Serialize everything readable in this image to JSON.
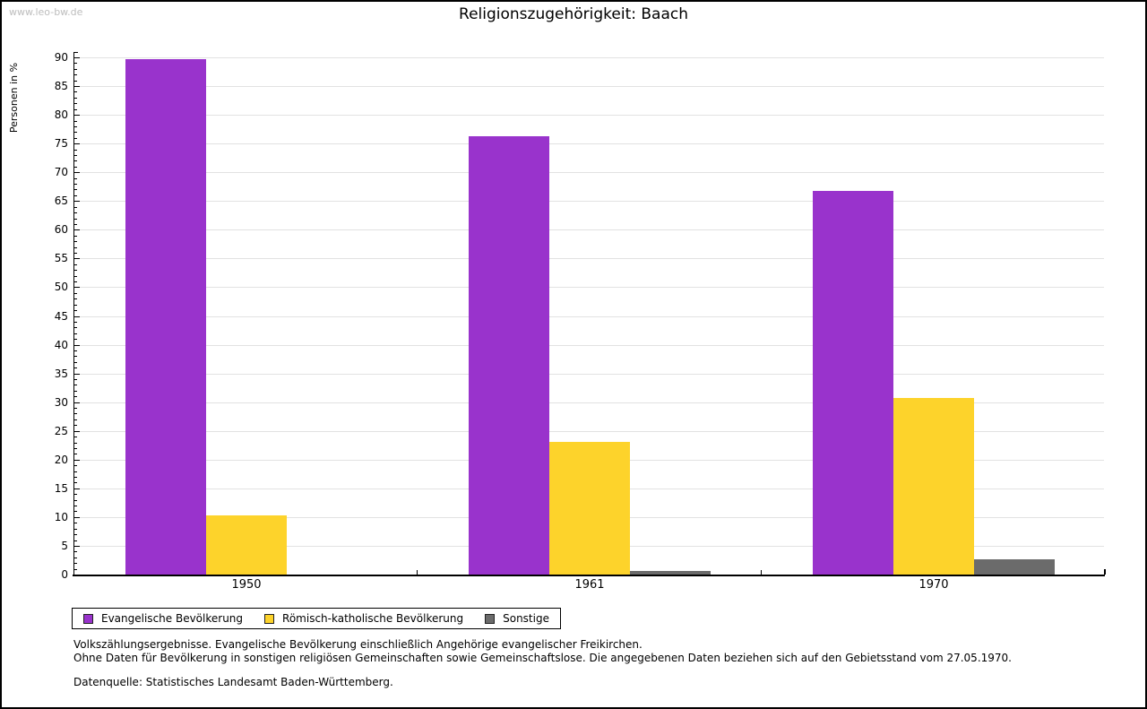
{
  "page": {
    "watermark": "www.leo-bw.de",
    "title": "Religionszugehörigkeit: Baach"
  },
  "chart_data": {
    "type": "bar",
    "title": "Religionszugehörigkeit: Baach",
    "ylabel": "Personen in %",
    "xlabel": "",
    "categories": [
      "1950",
      "1961",
      "1970"
    ],
    "series": [
      {
        "name": "Evangelische Bevölkerung",
        "color": "#9933CC",
        "values": [
          89.7,
          76.2,
          66.7
        ]
      },
      {
        "name": "Römisch-katholische Bevölkerung",
        "color": "#FDD32B",
        "values": [
          10.3,
          23.1,
          30.8
        ]
      },
      {
        "name": "Sonstige",
        "color": "#6B6B6B",
        "values": [
          0,
          0.7,
          2.7
        ]
      }
    ],
    "ylim": [
      0,
      90
    ],
    "ytick_step": 5,
    "ytick_minor_step": 1,
    "grid": true,
    "legend_position": "bottom-left"
  },
  "footnotes": {
    "line1": "Volkszählungsergebnisse. Evangelische Bevölkerung einschließlich Angehörige evangelischer Freikirchen.",
    "line2": "Ohne Daten für Bevölkerung in sonstigen religiösen Gemeinschaften sowie Gemeinschaftslose. Die angegebenen Daten beziehen sich auf den Gebietsstand vom 27.05.1970.",
    "source": "Datenquelle: Statistisches Landesamt Baden-Württemberg."
  }
}
